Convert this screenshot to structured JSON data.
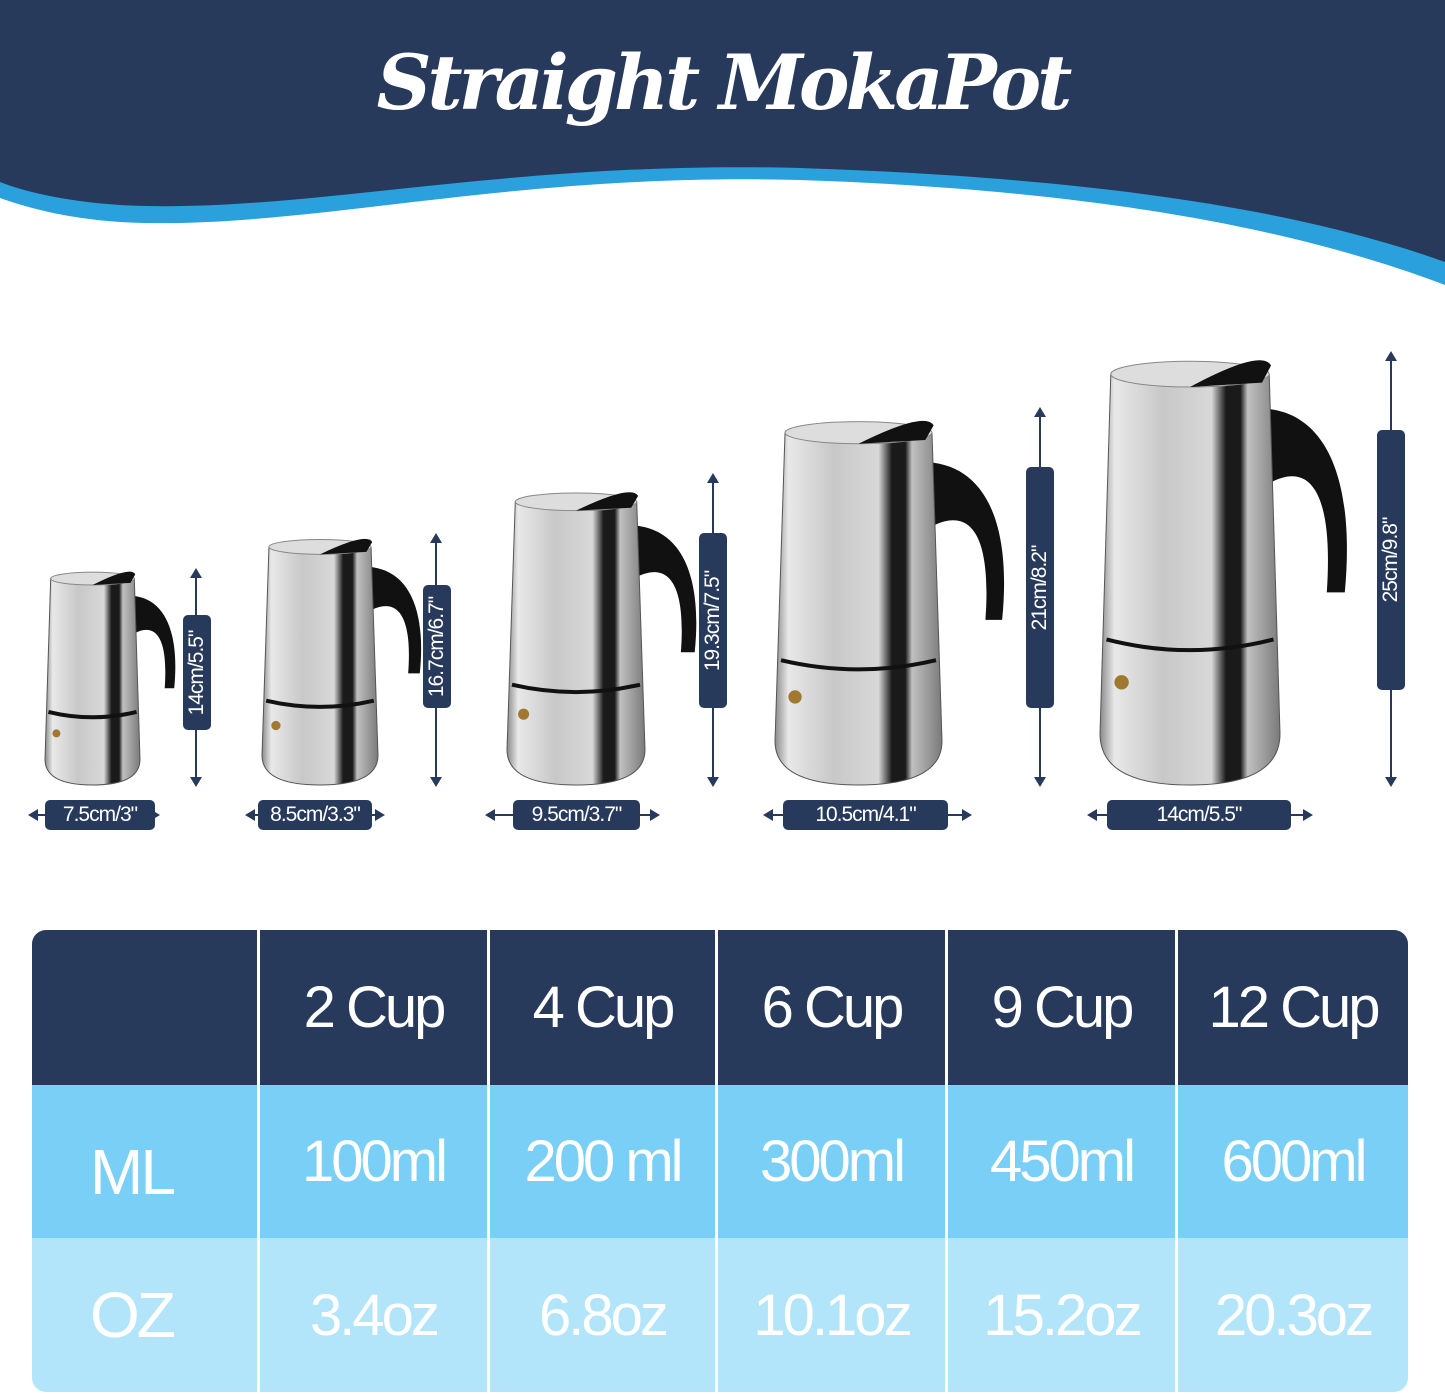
{
  "title": "Straight MokaPot",
  "colors": {
    "navy": "#283a5c",
    "wave_blue": "#2aa0dc",
    "ml_row": "#79cff5",
    "oz_row": "#b3e5fa"
  },
  "pots": [
    {
      "width_label": "7.5cm/3\"",
      "height_label": "14cm/5.5\""
    },
    {
      "width_label": "8.5cm/3.3\"",
      "height_label": "16.7cm/6.7\""
    },
    {
      "width_label": "9.5cm/3.7\"",
      "height_label": "19.3cm/7.5\""
    },
    {
      "width_label": "10.5cm/4.1\"",
      "height_label": "21cm/8.2\""
    },
    {
      "width_label": "14cm/5.5\"",
      "height_label": "25cm/9.8\""
    }
  ],
  "table": {
    "header": [
      "",
      "2 Cup",
      "4 Cup",
      "6 Cup",
      "9 Cup",
      "12 Cup"
    ],
    "rows": [
      [
        "ML",
        "100ml",
        "200 ml",
        "300ml",
        "450ml",
        "600ml"
      ],
      [
        "OZ",
        "3.4oz",
        "6.8oz",
        "10.1oz",
        "15.2oz",
        "20.3oz"
      ]
    ]
  }
}
